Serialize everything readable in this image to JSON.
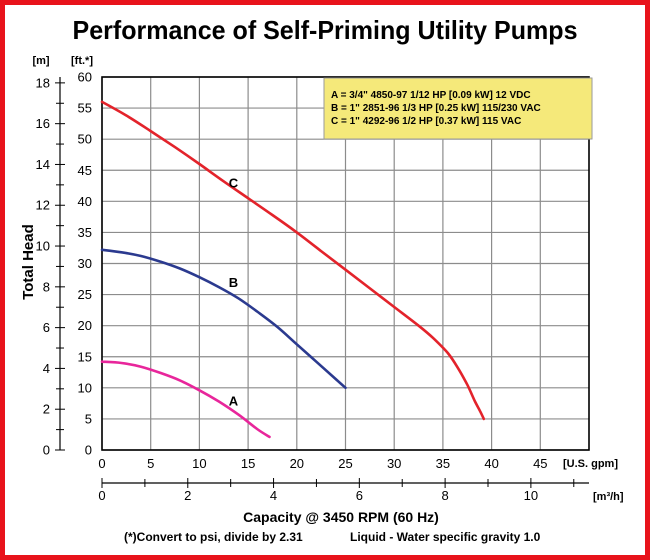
{
  "chart_data": {
    "type": "line",
    "title": "Performance of Self-Priming Utility Pumps",
    "ylabel": "Total Head",
    "y_units_primary": "[ft.*]",
    "y_units_secondary": "[m]",
    "x_units_primary": "[U.S. gpm]",
    "x_units_secondary": "[m³/h]",
    "xlabel": "Capacity @ 3450 RPM (60 Hz)",
    "footnote_left": "(*)Convert to psi, divide by 2.31",
    "footnote_right": "Liquid - Water specific gravity 1.0",
    "xlim": [
      0,
      50
    ],
    "ylim": [
      0,
      60
    ],
    "grid": true,
    "x_ticks": [
      0,
      5,
      10,
      15,
      20,
      25,
      30,
      35,
      40,
      45
    ],
    "y_ticks_ft": [
      0,
      5,
      10,
      15,
      20,
      25,
      30,
      35,
      40,
      45,
      50,
      55,
      60
    ],
    "x_ticks_m3h": [
      0,
      2,
      4,
      6,
      8,
      10
    ],
    "y_ticks_m": [
      0,
      2,
      4,
      6,
      8,
      10,
      12,
      14,
      16,
      18
    ],
    "legend": {
      "placement": "top-right",
      "background": "#f5e97a",
      "lines": [
        "A = 3/4\" 4850-97 1/12 HP [0.09 kW] 12 VDC",
        "B = 1\" 2851-96 1/3 HP [0.25 kW] 115/230 VAC",
        "C = 1\" 4292-96 1/2 HP [0.37 kW] 115 VAC"
      ]
    },
    "series": [
      {
        "name": "A",
        "color": "#e8269b",
        "label_at": [
          13.5,
          8
        ],
        "x": [
          0,
          2,
          4,
          6,
          8,
          10,
          12,
          14,
          16,
          17.2
        ],
        "y": [
          14.2,
          14,
          13.4,
          12.4,
          11.2,
          9.6,
          7.8,
          5.7,
          3.3,
          2.1
        ]
      },
      {
        "name": "B",
        "color": "#2b3a8f",
        "label_at": [
          13.5,
          27
        ],
        "x": [
          0,
          2,
          4,
          6,
          8,
          10,
          12,
          14,
          16,
          18,
          20,
          22,
          24,
          25
        ],
        "y": [
          32.2,
          31.8,
          31.2,
          30.3,
          29.2,
          27.8,
          26.2,
          24.4,
          22.2,
          19.8,
          17,
          14.2,
          11.4,
          10
        ]
      },
      {
        "name": "C",
        "color": "#e3232b",
        "label_at": [
          13.5,
          43
        ],
        "x": [
          0,
          2.5,
          5,
          7.5,
          10,
          12.5,
          15,
          17.5,
          20,
          22.5,
          25,
          27.5,
          30,
          32.5,
          34,
          35.5,
          36.5,
          37.5,
          38.3,
          38.8,
          39.2
        ],
        "y": [
          56,
          53.8,
          51.3,
          48.7,
          46,
          43.2,
          40.5,
          37.8,
          35,
          32,
          29,
          26,
          23,
          20,
          18,
          15.6,
          13.3,
          10.5,
          7.8,
          6.3,
          5
        ]
      }
    ]
  }
}
